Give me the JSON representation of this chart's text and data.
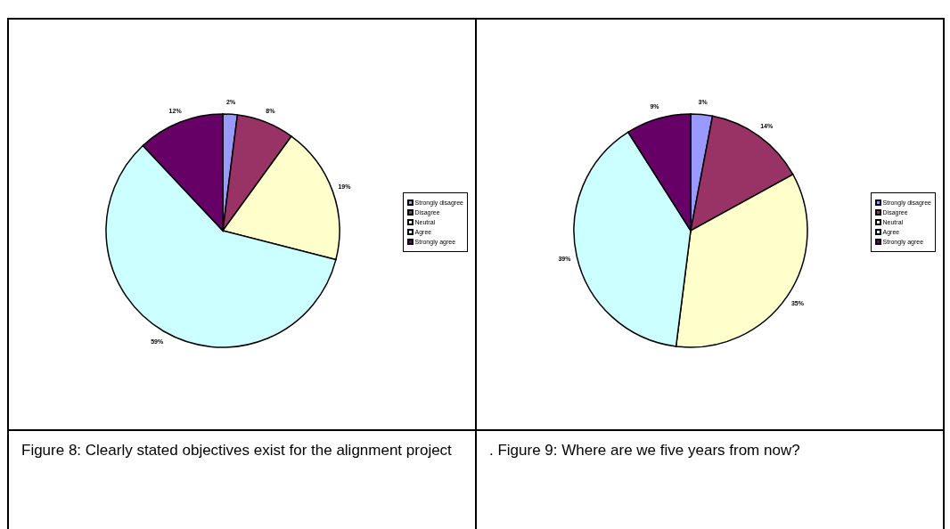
{
  "chart_data": [
    {
      "type": "pie",
      "categories": [
        "Strongly disagree",
        "Disagree",
        "Neutral",
        "Agree",
        "Strongly agree"
      ],
      "values": [
        2,
        8,
        19,
        59,
        12
      ],
      "value_labels": [
        "2%",
        "8%",
        "19%",
        "59%",
        "12%"
      ],
      "colors": [
        "#9999ff",
        "#993366",
        "#ffffcc",
        "#ccffff",
        "#660066"
      ],
      "legend": "right",
      "annotations": [
        "Figure 8: Clearly stated objectives exist for the alignment project"
      ]
    },
    {
      "type": "pie",
      "categories": [
        "Strongly disagree",
        "Disagree",
        "Neutral",
        "Agree",
        "Strongly agree"
      ],
      "values": [
        3,
        14,
        35,
        39,
        9
      ],
      "value_labels": [
        "3%",
        "14%",
        "35%",
        "39%",
        "9%"
      ],
      "colors": [
        "#9999ff",
        "#993366",
        "#ffffcc",
        "#ccffff",
        "#660066"
      ],
      "legend": "right",
      "annotations": [
        ". Figure 9: Where are we five years from now?"
      ]
    }
  ]
}
